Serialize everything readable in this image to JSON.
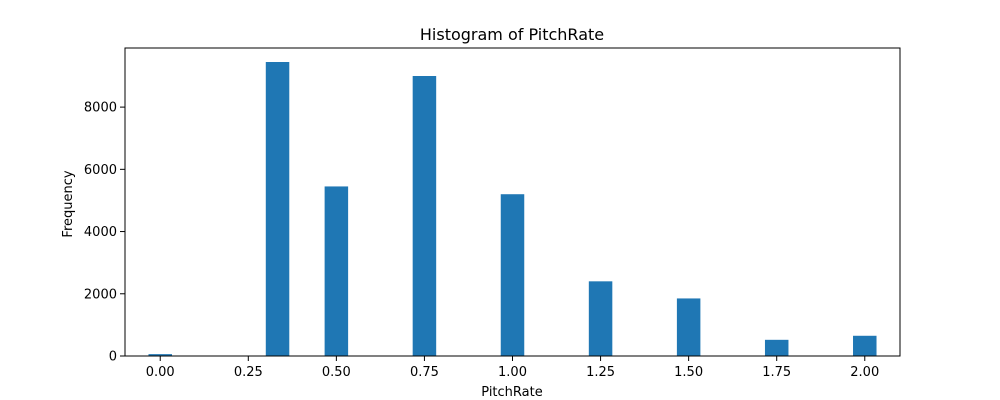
{
  "chart_data": {
    "type": "bar",
    "title": "Histogram of PitchRate",
    "xlabel": "PitchRate",
    "ylabel": "Frequency",
    "xlim": [
      -0.1,
      2.1
    ],
    "ylim": [
      0,
      9900
    ],
    "x_ticks": [
      "0.00",
      "0.25",
      "0.50",
      "0.75",
      "1.00",
      "1.25",
      "1.50",
      "1.75",
      "2.00"
    ],
    "y_ticks": [
      "0",
      "2000",
      "4000",
      "6000",
      "8000"
    ],
    "bar_color": "#1f77b4",
    "grid": false,
    "bins": [
      {
        "x": 0.0,
        "value": 60
      },
      {
        "x": 0.333,
        "value": 9450
      },
      {
        "x": 0.5,
        "value": 5450
      },
      {
        "x": 0.75,
        "value": 9000
      },
      {
        "x": 1.0,
        "value": 5200
      },
      {
        "x": 1.25,
        "value": 2400
      },
      {
        "x": 1.5,
        "value": 1850
      },
      {
        "x": 1.75,
        "value": 520
      },
      {
        "x": 2.0,
        "value": 650
      }
    ],
    "bin_width": 0.0667
  }
}
